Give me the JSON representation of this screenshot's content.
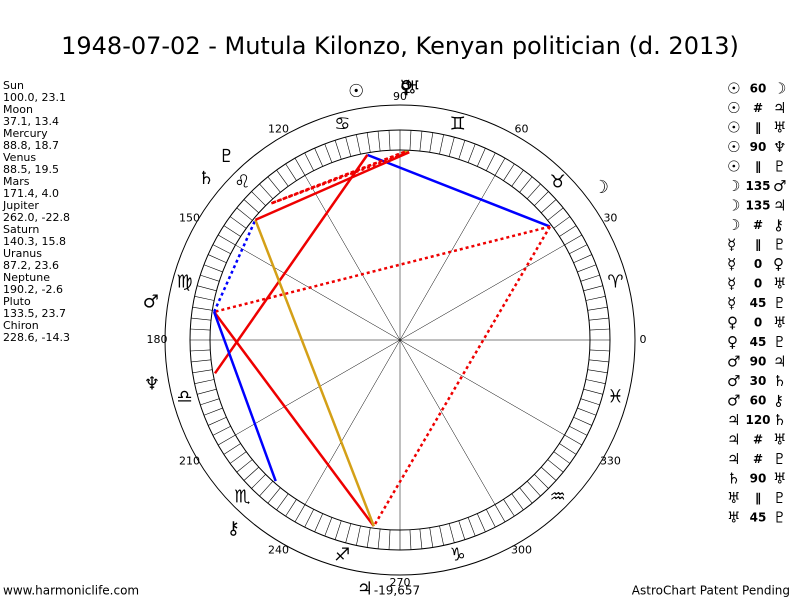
{
  "title": "1948-07-02 - Mutula Kilonzo, Kenyan politician (d. 2013)",
  "planets": [
    {
      "name": "Sun",
      "coords": "100.0, 23.1",
      "glyph": "☉"
    },
    {
      "name": "Moon",
      "coords": "37.1, 13.4",
      "glyph": "☽"
    },
    {
      "name": "Mercury",
      "coords": "88.8, 18.7",
      "glyph": "☿"
    },
    {
      "name": "Venus",
      "coords": "88.5, 19.5",
      "glyph": "♀"
    },
    {
      "name": "Mars",
      "coords": "171.4, 4.0",
      "glyph": "♂"
    },
    {
      "name": "Jupiter",
      "coords": "262.0, -22.8",
      "glyph": "♃"
    },
    {
      "name": "Saturn",
      "coords": "140.3, 15.8",
      "glyph": "♄"
    },
    {
      "name": "Uranus",
      "coords": "87.2, 23.6",
      "glyph": "♅"
    },
    {
      "name": "Neptune",
      "coords": "190.2, -2.6",
      "glyph": "♆"
    },
    {
      "name": "Pluto",
      "coords": "133.5, 23.7",
      "glyph": "♇"
    },
    {
      "name": "Chiron",
      "coords": "228.6, -14.3",
      "glyph": "⚷"
    }
  ],
  "signs": [
    "♈",
    "♉",
    "♊",
    "♋",
    "♌",
    "♍",
    "♎",
    "♏",
    "♐",
    "♑",
    "♒",
    "♓"
  ],
  "degree_labels": [
    "0",
    "30",
    "60",
    "90",
    "120",
    "150",
    "180",
    "210",
    "240",
    "270",
    "300",
    "330"
  ],
  "aspects": [
    [
      "☉",
      "60",
      "☽"
    ],
    [
      "☉",
      "#",
      "♃"
    ],
    [
      "☉",
      "∥",
      "♅"
    ],
    [
      "☉",
      "90",
      "♆"
    ],
    [
      "☉",
      "∥",
      "♇"
    ],
    [
      "☽",
      "135",
      "♂"
    ],
    [
      "☽",
      "135",
      "♃"
    ],
    [
      "☽",
      "#",
      "⚷"
    ],
    [
      "☿",
      "∥",
      "♇"
    ],
    [
      "☿",
      "0",
      "♀"
    ],
    [
      "☿",
      "0",
      "♅"
    ],
    [
      "☿",
      "45",
      "♇"
    ],
    [
      "♀",
      "0",
      "♅"
    ],
    [
      "♀",
      "45",
      "♇"
    ],
    [
      "♂",
      "90",
      "♃"
    ],
    [
      "♂",
      "30",
      "♄"
    ],
    [
      "♂",
      "60",
      "⚷"
    ],
    [
      "♃",
      "120",
      "♄"
    ],
    [
      "♃",
      "#",
      "♅"
    ],
    [
      "♃",
      "#",
      "♇"
    ],
    [
      "♄",
      "90",
      "♅"
    ],
    [
      "♅",
      "∥",
      "♇"
    ],
    [
      "♅",
      "45",
      "♇"
    ]
  ],
  "aspect_styles": {
    "0": {
      "color": "#d4a017",
      "dash": "3,3"
    },
    "30": {
      "color": "#0000ff",
      "dash": "3,3"
    },
    "45": {
      "color": "#ee0000",
      "dash": "3,3"
    },
    "60": {
      "color": "#0000ff",
      "dash": ""
    },
    "90": {
      "color": "#ee0000",
      "dash": ""
    },
    "120": {
      "color": "#d4a017",
      "dash": ""
    },
    "135": {
      "color": "#ee0000",
      "dash": "3,3"
    }
  },
  "offset_label": "-19,657",
  "footer": {
    "left": "www.harmoniclife.com",
    "right": "AstroChart Patent Pending"
  }
}
